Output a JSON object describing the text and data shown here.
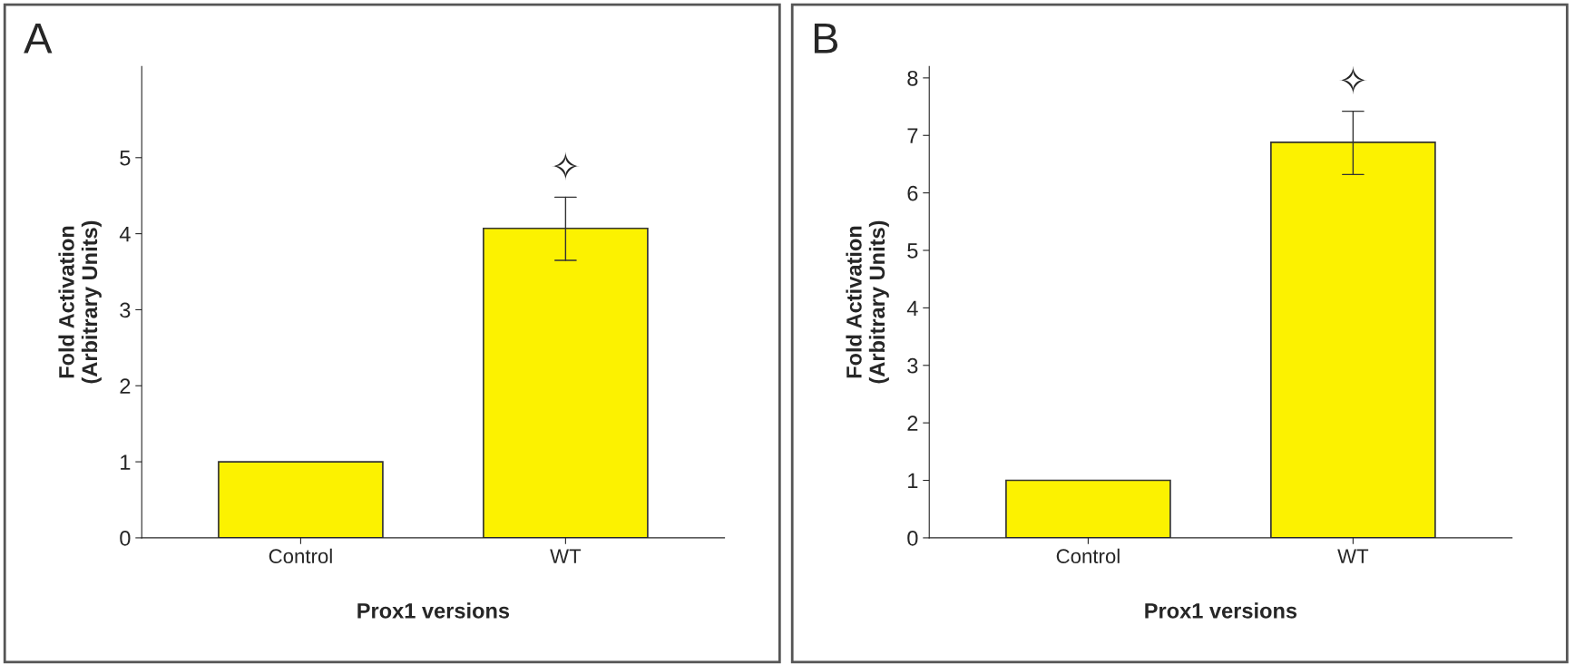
{
  "chart_data": [
    {
      "type": "bar",
      "title": "A",
      "xlabel": "Prox1 versions",
      "ylabel": "Fold Activation\n(Arbitrary Units)",
      "categories": [
        "Control",
        "WT"
      ],
      "values": [
        1.0,
        4.07
      ],
      "errors": [
        null,
        [
          3.65,
          4.48
        ]
      ],
      "colors": [
        "#fcf200",
        "#fcf200"
      ],
      "ylim": [
        0,
        6.2
      ],
      "yticks": [
        0,
        1,
        2,
        3,
        4,
        5
      ],
      "grid": false,
      "annotations": [
        "✧"
      ]
    },
    {
      "type": "bar",
      "title": "B",
      "xlabel": "Prox1 versions",
      "ylabel": "Fold Activation\n(Arbitrary Units)",
      "categories": [
        "Control",
        "WT"
      ],
      "values": [
        1.0,
        6.88
      ],
      "errors": [
        null,
        [
          6.32,
          7.42
        ]
      ],
      "colors": [
        "#fcf200",
        "#fcf200"
      ],
      "ylim": [
        0,
        8.2
      ],
      "yticks": [
        0,
        1,
        2,
        3,
        4,
        5,
        6,
        7,
        8
      ],
      "grid": false,
      "annotations": [
        "✧"
      ]
    }
  ]
}
